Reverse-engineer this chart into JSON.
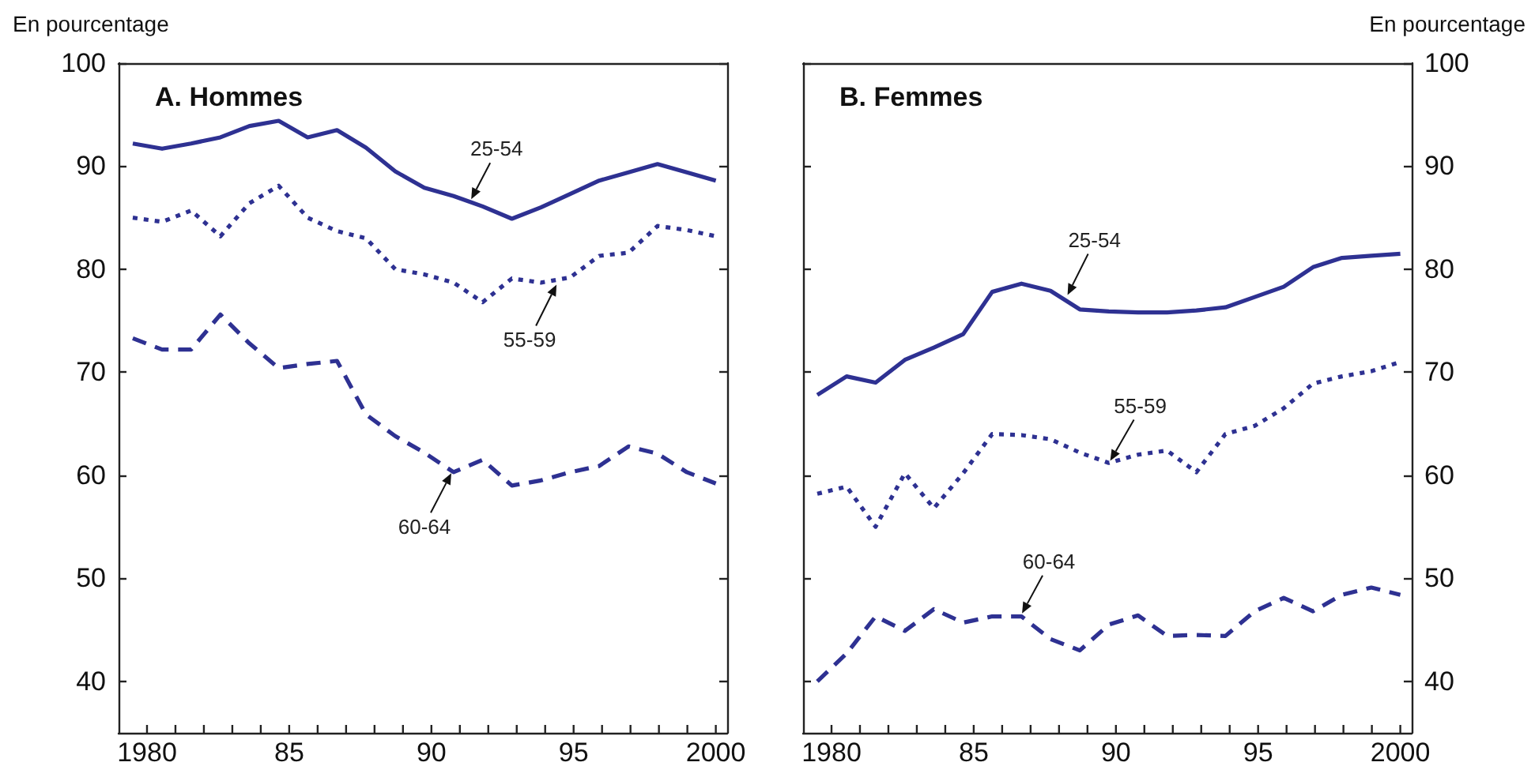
{
  "chart_data": [
    {
      "type": "line",
      "title": "A. Hommes",
      "ylabel": "En pourcentage",
      "grid": false,
      "marker": "none",
      "x": [
        1979.5,
        1980.53,
        1981.55,
        1982.58,
        1983.6,
        1984.63,
        1985.65,
        1986.68,
        1987.7,
        1988.73,
        1989.75,
        1990.78,
        1991.8,
        1992.83,
        1993.85,
        1994.88,
        1995.9,
        1996.93,
        1997.95,
        1998.98,
        2000
      ],
      "xlim": [
        1979,
        2000.4
      ],
      "xticks": [
        {
          "value": 1980,
          "label": "1980"
        },
        {
          "value": 1981,
          "label": null
        },
        {
          "value": 1982,
          "label": null
        },
        {
          "value": 1983,
          "label": null
        },
        {
          "value": 1984,
          "label": null
        },
        {
          "value": 1985,
          "label": "85"
        },
        {
          "value": 1986,
          "label": null
        },
        {
          "value": 1987,
          "label": null
        },
        {
          "value": 1988,
          "label": null
        },
        {
          "value": 1989,
          "label": null
        },
        {
          "value": 1990,
          "label": "90"
        },
        {
          "value": 1991,
          "label": null
        },
        {
          "value": 1992,
          "label": null
        },
        {
          "value": 1993,
          "label": null
        },
        {
          "value": 1994,
          "label": null
        },
        {
          "value": 1995,
          "label": "95"
        },
        {
          "value": 1996,
          "label": null
        },
        {
          "value": 1997,
          "label": null
        },
        {
          "value": 1998,
          "label": null
        },
        {
          "value": 1999,
          "label": null
        },
        {
          "value": 2000,
          "label": "2000"
        }
      ],
      "ylim": [
        35,
        100
      ],
      "yticks": [
        40,
        50,
        60,
        70,
        80,
        90,
        100
      ],
      "series": [
        {
          "color": "#2e3192",
          "line_style": "solid",
          "values": [
            92.2,
            91.7,
            92.2,
            92.8,
            93.9,
            94.4,
            92.8,
            93.5,
            91.8,
            89.5,
            87.9,
            87.1,
            86.1,
            84.9,
            86.0,
            87.3,
            88.6,
            89.4,
            90.2,
            89.4,
            88.6
          ]
        },
        {
          "color": "#2e3192",
          "line_style": "dotted",
          "values": [
            85.0,
            84.6,
            85.7,
            83.2,
            86.4,
            88.1,
            85.0,
            83.7,
            83.0,
            80.0,
            79.5,
            78.7,
            76.8,
            79.1,
            78.7,
            79.2,
            81.3,
            81.6,
            84.2,
            83.8,
            83.2
          ]
        },
        {
          "color": "#2e3192",
          "line_style": "dashed",
          "values": [
            73.3,
            72.2,
            72.2,
            75.6,
            72.8,
            70.4,
            70.8,
            71.1,
            65.9,
            63.8,
            62.2,
            60.3,
            61.5,
            59.0,
            59.5,
            60.3,
            60.9,
            62.8,
            62.1,
            60.3,
            59.2
          ]
        }
      ],
      "annotations": [
        {
          "text": "25-54",
          "x": 1991.4,
          "y": 86.8
        },
        {
          "text": "55-59",
          "x": 1994.4,
          "y": 78.5
        },
        {
          "text": "60-64",
          "x": 1990.7,
          "y": 60.2
        }
      ]
    },
    {
      "type": "line",
      "title": "B. Femmes",
      "ylabel": "En pourcentage",
      "grid": false,
      "marker": "none",
      "x": [
        1979.5,
        1980.53,
        1981.55,
        1982.58,
        1983.6,
        1984.63,
        1985.65,
        1986.68,
        1987.7,
        1988.73,
        1989.75,
        1990.78,
        1991.8,
        1992.83,
        1993.85,
        1994.88,
        1995.9,
        1996.93,
        1997.95,
        1998.98,
        2000
      ],
      "xlim": [
        1979,
        2000.4
      ],
      "xticks": [
        {
          "value": 1980,
          "label": "1980"
        },
        {
          "value": 1981,
          "label": null
        },
        {
          "value": 1982,
          "label": null
        },
        {
          "value": 1983,
          "label": null
        },
        {
          "value": 1984,
          "label": null
        },
        {
          "value": 1985,
          "label": "85"
        },
        {
          "value": 1986,
          "label": null
        },
        {
          "value": 1987,
          "label": null
        },
        {
          "value": 1988,
          "label": null
        },
        {
          "value": 1989,
          "label": null
        },
        {
          "value": 1990,
          "label": "90"
        },
        {
          "value": 1991,
          "label": null
        },
        {
          "value": 1992,
          "label": null
        },
        {
          "value": 1993,
          "label": null
        },
        {
          "value": 1994,
          "label": null
        },
        {
          "value": 1995,
          "label": "95"
        },
        {
          "value": 1996,
          "label": null
        },
        {
          "value": 1997,
          "label": null
        },
        {
          "value": 1998,
          "label": null
        },
        {
          "value": 1999,
          "label": null
        },
        {
          "value": 2000,
          "label": "2000"
        }
      ],
      "ylim": [
        35,
        100
      ],
      "yticks": [
        40,
        50,
        60,
        70,
        80,
        90,
        100
      ],
      "series": [
        {
          "color": "#2e3192",
          "line_style": "solid",
          "values": [
            67.8,
            69.6,
            69.0,
            71.2,
            72.4,
            73.7,
            77.8,
            78.6,
            77.9,
            76.1,
            75.9,
            75.8,
            75.8,
            76.0,
            76.3,
            77.3,
            78.3,
            80.2,
            81.1,
            81.3,
            81.5
          ]
        },
        {
          "color": "#2e3192",
          "line_style": "dotted",
          "values": [
            58.2,
            58.9,
            55.0,
            60.2,
            56.8,
            60.2,
            64.0,
            63.9,
            63.5,
            62.2,
            61.2,
            62.0,
            62.4,
            60.3,
            64.0,
            64.8,
            66.5,
            68.9,
            69.6,
            70.1,
            71.0
          ]
        },
        {
          "color": "#2e3192",
          "line_style": "dashed",
          "values": [
            40.0,
            42.7,
            46.3,
            44.9,
            47.0,
            45.7,
            46.3,
            46.3,
            44.1,
            43.0,
            45.5,
            46.4,
            44.4,
            44.5,
            44.4,
            46.8,
            48.1,
            46.8,
            48.4,
            49.1,
            48.4
          ]
        }
      ],
      "annotations": [
        {
          "text": "25-54",
          "x": 1988.3,
          "y": 77.5
        },
        {
          "text": "55-59",
          "x": 1989.8,
          "y": 61.4
        },
        {
          "text": "60-64",
          "x": 1986.7,
          "y": 46.6
        }
      ]
    }
  ]
}
